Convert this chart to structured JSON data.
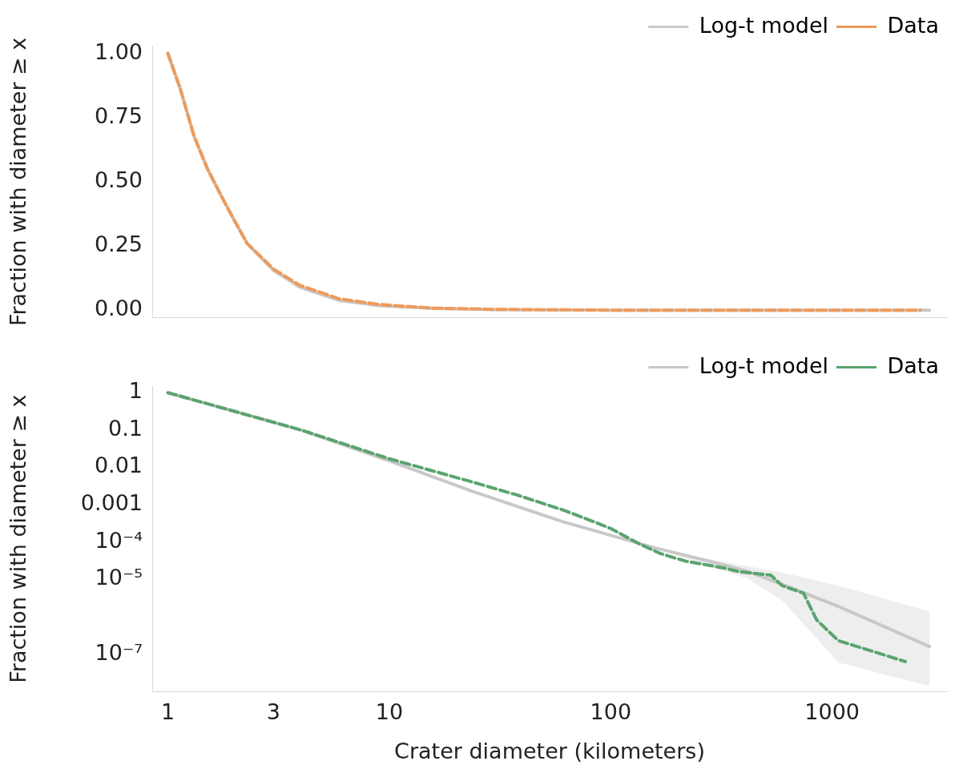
{
  "chart_data": [
    {
      "type": "line",
      "ylabel": "Fraction with diameter ≥ x",
      "log": "x",
      "xlim": [
        0.85,
        3300
      ],
      "xticks": [
        1,
        3,
        10,
        100,
        1000
      ],
      "ylim": [
        -0.03,
        1.03
      ],
      "yticks": [
        {
          "value": 0,
          "label": "0.00"
        },
        {
          "value": 0.25,
          "label": "0.25"
        },
        {
          "value": 0.5,
          "label": "0.50"
        },
        {
          "value": 0.75,
          "label": "0.75"
        },
        {
          "value": 1,
          "label": "1.00"
        }
      ],
      "tick_labels": "y",
      "grid": false,
      "legend": "top right",
      "series": [
        {
          "name": "Log-t model",
          "color": "#c8c8c8",
          "line_style": "solid",
          "x": [
            1,
            1.14,
            1.31,
            1.51,
            1.73,
            1.98,
            2.28,
            3,
            3.94,
            5.95,
            8.98,
            15.6,
            30,
            100,
            1000,
            2750
          ],
          "values": [
            1,
            0.86,
            0.68,
            0.55,
            0.45,
            0.355,
            0.26,
            0.155,
            0.09,
            0.038,
            0.018,
            0.007,
            0.002,
            0,
            0,
            0
          ]
        },
        {
          "name": "Data",
          "color": "#ee9a5a",
          "line_style": "dashed",
          "x": [
            1,
            1.14,
            1.31,
            1.51,
            1.73,
            1.98,
            2.28,
            3,
            3.94,
            5.95,
            8.98,
            15.6,
            30,
            100,
            1000,
            2500
          ],
          "values": [
            1,
            0.86,
            0.68,
            0.55,
            0.45,
            0.355,
            0.26,
            0.16,
            0.097,
            0.044,
            0.022,
            0.008,
            0.003,
            0,
            0,
            0
          ]
        }
      ]
    },
    {
      "type": "line",
      "xlabel": "Crater diameter (kilometers)",
      "ylabel": "Fraction with diameter ≥ x",
      "log": "xy",
      "xlim": [
        0.85,
        3300
      ],
      "xticks": [
        1,
        3,
        10,
        100,
        1000
      ],
      "ylim": [
        1e-08,
        1.5
      ],
      "yticks": [
        1,
        0.1,
        0.01,
        0.001,
        {
          "value": 0.0001,
          "label": "10⁻⁴"
        },
        {
          "value": 1e-05,
          "label": "10⁻⁵"
        },
        {
          "value": 1e-07,
          "label": "10⁻⁷"
        }
      ],
      "grid": false,
      "legend": "top right",
      "series": [
        {
          "name": "Log-t model",
          "color": "#c8c8c8",
          "line_style": "solid",
          "x": [
            1,
            4,
            10,
            23.6,
            60.9,
            158,
            250,
            409,
            600,
            1066,
            2750
          ],
          "values": [
            1,
            0.1,
            0.015,
            0.0023,
            0.00035,
            7e-05,
            3.6e-05,
            1.7e-05,
            7.2e-06,
            1.9e-06,
            1.6e-07
          ],
          "lower": [
            null,
            null,
            null,
            null,
            null,
            7e-05,
            2.8e-05,
            1.1e-05,
            2.6e-06,
            6e-08,
            1.4e-08
          ],
          "upper": [
            null,
            null,
            null,
            null,
            null,
            7e-05,
            4e-05,
            2.3e-05,
            1.5e-05,
            6.8e-06,
            1.4e-06
          ]
        },
        {
          "name": "Data",
          "color": "#5aa46e",
          "line_style": "dashed",
          "x": [
            1,
            4,
            10,
            23.6,
            38,
            61,
            84,
            100,
            135,
            168,
            217,
            327,
            381,
            528,
            595,
            742,
            850,
            1066,
            2140
          ],
          "values": [
            1,
            0.1,
            0.017,
            0.0041,
            0.0018,
            0.00072,
            0.00035,
            0.00023,
            8.9e-05,
            4.9e-05,
            3.1e-05,
            2e-05,
            1.6e-05,
            1.3e-05,
            6.8e-06,
            4.3e-06,
            8.3e-07,
            2.3e-07,
            6.3e-08
          ]
        }
      ]
    }
  ]
}
